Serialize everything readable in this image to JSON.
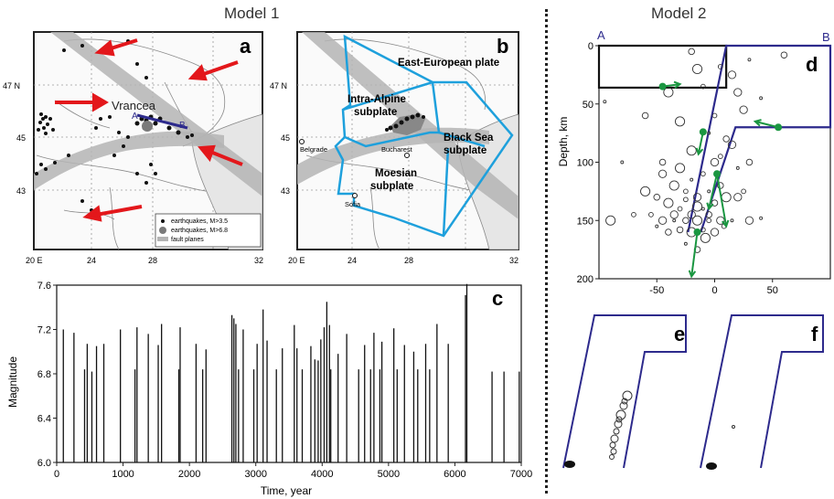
{
  "model1": {
    "title": "Model 1",
    "panel_a": {
      "label": "a",
      "lat_ticks": [
        "47 N",
        "45",
        "43"
      ],
      "lon_ticks": [
        "20 E",
        "24",
        "28",
        "32"
      ],
      "place": "Vrancea",
      "profile_start": "A",
      "profile_end": "B",
      "legend": [
        "earthquakes, M>3.5",
        "earthquakes, M>6.8",
        "fault planes"
      ]
    },
    "panel_b": {
      "label": "b",
      "lat_ticks": [
        "47 N",
        "45",
        "43"
      ],
      "lon_ticks": [
        "20 E",
        "24",
        "28",
        "32"
      ],
      "plates": [
        "East-European plate",
        "Intra-Alpine",
        "subplate",
        "Black Sea",
        "subplate",
        "Moesian",
        "subplate"
      ],
      "cities": [
        "Belgrade",
        "Bucharest",
        "Sofia"
      ]
    },
    "panel_c": {
      "label": "c",
      "xlabel": "Time, year",
      "ylabel": "Magnitude"
    }
  },
  "model2": {
    "title": "Model 2",
    "panel_d": {
      "label": "d",
      "ylabel": "Depth, km",
      "corner_left": "A",
      "corner_right": "B"
    },
    "panel_e": {
      "label": "e"
    },
    "panel_f": {
      "label": "f"
    }
  },
  "colors": {
    "arrow_red": "#e3171b",
    "plate_blue": "#1ea0dc",
    "block_navy": "#2d2a8c",
    "arrow_green": "#1a9641",
    "fault_gray": "#b4b4b4"
  },
  "chart_data": [
    {
      "type": "bar",
      "panel": "c",
      "xlabel": "Time, year",
      "ylabel": "Magnitude",
      "xlim": [
        0,
        7000
      ],
      "ylim": [
        6.0,
        7.6
      ],
      "x_ticks": [
        0,
        1000,
        2000,
        3000,
        4000,
        5000,
        6000,
        7000
      ],
      "y_ticks": [
        6.0,
        6.4,
        6.8,
        7.2,
        7.6
      ],
      "x": [
        100,
        260,
        420,
        460,
        530,
        600,
        710,
        960,
        1180,
        1210,
        1380,
        1530,
        1580,
        1840,
        1860,
        2100,
        2200,
        2250,
        2640,
        2670,
        2700,
        2740,
        2810,
        2970,
        3020,
        3110,
        3170,
        3310,
        3400,
        3580,
        3620,
        3700,
        3830,
        3890,
        3940,
        3980,
        4030,
        4070,
        4110,
        4130,
        4240,
        4370,
        4550,
        4640,
        4730,
        4780,
        4870,
        4900,
        5080,
        5130,
        5240,
        5380,
        5440,
        5560,
        5620,
        5730,
        5900,
        6160,
        6180,
        6560,
        6740,
        6970
      ],
      "values": [
        7.2,
        7.17,
        6.84,
        7.07,
        6.82,
        7.05,
        7.07,
        7.2,
        6.84,
        7.22,
        7.16,
        7.06,
        7.25,
        6.84,
        7.22,
        7.07,
        6.84,
        7.02,
        7.33,
        7.3,
        7.25,
        6.84,
        7.2,
        6.84,
        7.07,
        7.38,
        7.1,
        6.84,
        7.03,
        7.24,
        7.03,
        6.84,
        7.05,
        6.93,
        6.92,
        7.11,
        7.22,
        7.45,
        7.24,
        6.84,
        6.98,
        7.16,
        6.84,
        7.06,
        6.84,
        7.17,
        6.84,
        7.09,
        7.21,
        6.84,
        7.06,
        7.0,
        6.84,
        7.07,
        6.84,
        7.25,
        7.07,
        7.51,
        7.61,
        6.82,
        6.82,
        6.82
      ]
    },
    {
      "type": "scatter",
      "panel": "d",
      "ylabel": "Depth, km",
      "xlim": [
        -100,
        100
      ],
      "ylim": [
        200,
        0
      ],
      "x_ticks": [
        -50,
        0,
        50
      ],
      "y_ticks": [
        0,
        50,
        100,
        150,
        200
      ],
      "series": [
        {
          "points": [
            [
              -95,
              48
            ],
            [
              -20,
              5
            ],
            [
              -15,
              20
            ],
            [
              5,
              18
            ],
            [
              15,
              25
            ],
            [
              30,
              12
            ],
            [
              60,
              8
            ],
            [
              -40,
              40
            ],
            [
              -10,
              35
            ],
            [
              20,
              40
            ],
            [
              40,
              45
            ],
            [
              -60,
              60
            ],
            [
              -30,
              65
            ],
            [
              0,
              60
            ],
            [
              25,
              55
            ],
            [
              -5,
              75
            ],
            [
              10,
              80
            ],
            [
              -20,
              90
            ],
            [
              5,
              95
            ],
            [
              15,
              85
            ],
            [
              -80,
              100
            ],
            [
              -45,
              100
            ],
            [
              -30,
              105
            ],
            [
              -10,
              110
            ],
            [
              0,
              100
            ],
            [
              20,
              105
            ],
            [
              30,
              100
            ],
            [
              -35,
              120
            ],
            [
              -25,
              125
            ],
            [
              -15,
              130
            ],
            [
              -5,
              125
            ],
            [
              5,
              120
            ],
            [
              -40,
              135
            ],
            [
              -30,
              140
            ],
            [
              -20,
              145
            ],
            [
              -10,
              140
            ],
            [
              0,
              135
            ],
            [
              10,
              130
            ],
            [
              -55,
              145
            ],
            [
              -45,
              150
            ],
            [
              -35,
              150
            ],
            [
              -25,
              150
            ],
            [
              -15,
              150
            ],
            [
              -5,
              150
            ],
            [
              5,
              150
            ],
            [
              15,
              150
            ],
            [
              -30,
              158
            ],
            [
              -20,
              160
            ],
            [
              -10,
              158
            ],
            [
              0,
              160
            ],
            [
              -25,
              170
            ],
            [
              -15,
              175
            ],
            [
              -90,
              150
            ],
            [
              -70,
              145
            ],
            [
              30,
              150
            ],
            [
              40,
              148
            ],
            [
              -50,
              130
            ],
            [
              -60,
              125
            ],
            [
              25,
              125
            ],
            [
              -45,
              110
            ],
            [
              -20,
              115
            ],
            [
              -5,
              145
            ],
            [
              -15,
              138
            ],
            [
              -25,
              132
            ],
            [
              -35,
              145
            ],
            [
              -50,
              155
            ],
            [
              -40,
              160
            ],
            [
              -8,
              165
            ],
            [
              8,
              155
            ],
            [
              20,
              130
            ]
          ]
        }
      ]
    }
  ]
}
